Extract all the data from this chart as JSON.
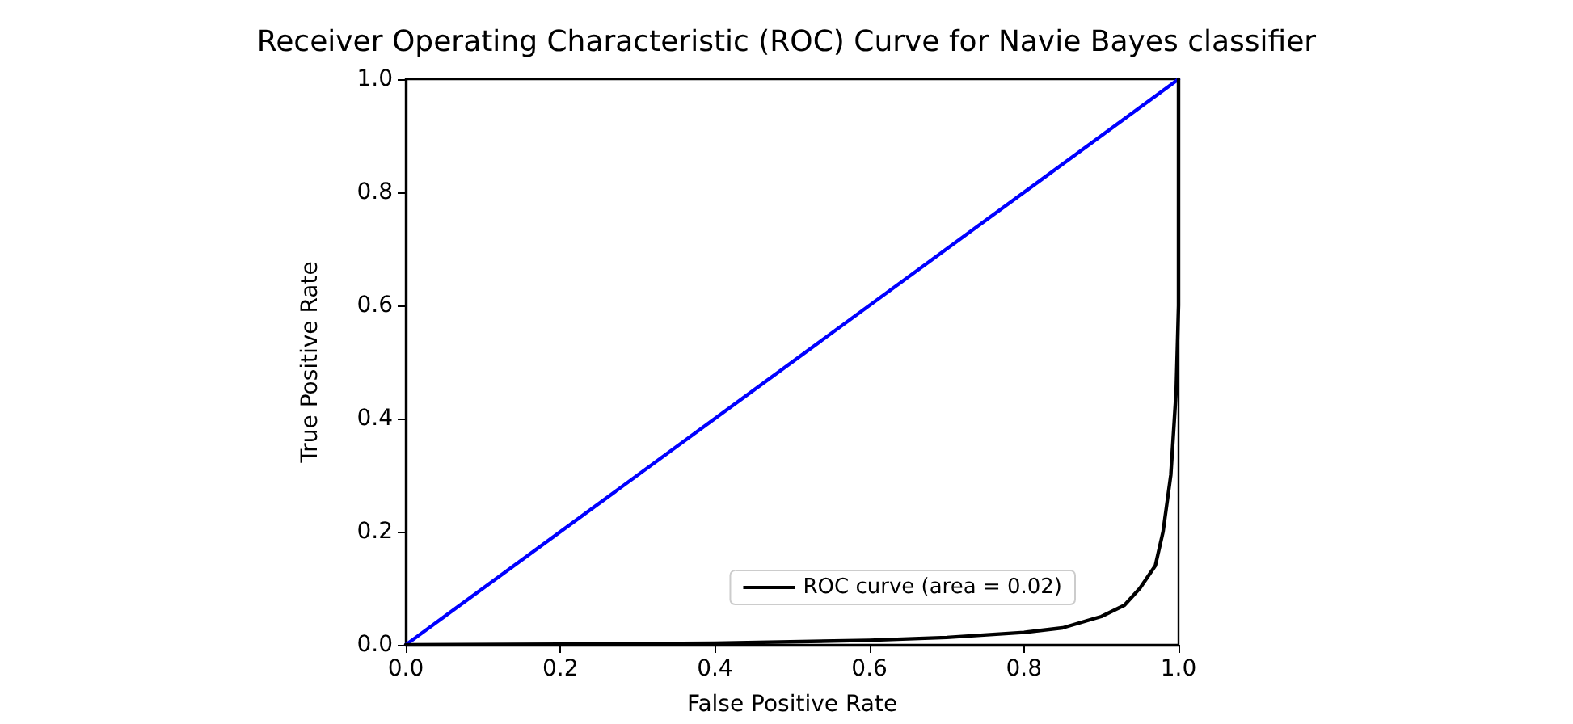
{
  "chart_data": {
    "type": "line",
    "title": "Receiver Operating Characteristic (ROC) Curve for Navie Bayes classifier",
    "xlabel": "False Positive Rate",
    "ylabel": "True Positive Rate",
    "series": [
      {
        "name": "ROC curve (area = 0.02)",
        "color": "#000000",
        "x": [
          0,
          0.2,
          0.4,
          0.6,
          0.7,
          0.8,
          0.85,
          0.9,
          0.93,
          0.95,
          0.97,
          0.98,
          0.99,
          0.997,
          1,
          1
        ],
        "values": [
          0,
          0.001,
          0.003,
          0.008,
          0.013,
          0.022,
          0.03,
          0.05,
          0.07,
          0.1,
          0.14,
          0.2,
          0.3,
          0.45,
          0.6,
          1
        ]
      },
      {
        "color": "#0000ff",
        "x": [
          0,
          1
        ],
        "values": [
          0,
          1
        ]
      }
    ],
    "xlim": [
      0,
      1
    ],
    "ylim": [
      0,
      1
    ],
    "xticks": [
      {
        "value": 0,
        "label": "0.0"
      },
      0.2,
      0.4,
      0.6,
      0.8,
      {
        "value": 1,
        "label": "1.0"
      }
    ],
    "yticks": [
      {
        "value": 0,
        "label": "0.0"
      },
      0.2,
      0.4,
      0.6,
      0.8,
      {
        "value": 1,
        "label": "1.0"
      }
    ],
    "grid": false,
    "legend": "bottom right",
    "marker": "none",
    "line_style": "solid"
  }
}
